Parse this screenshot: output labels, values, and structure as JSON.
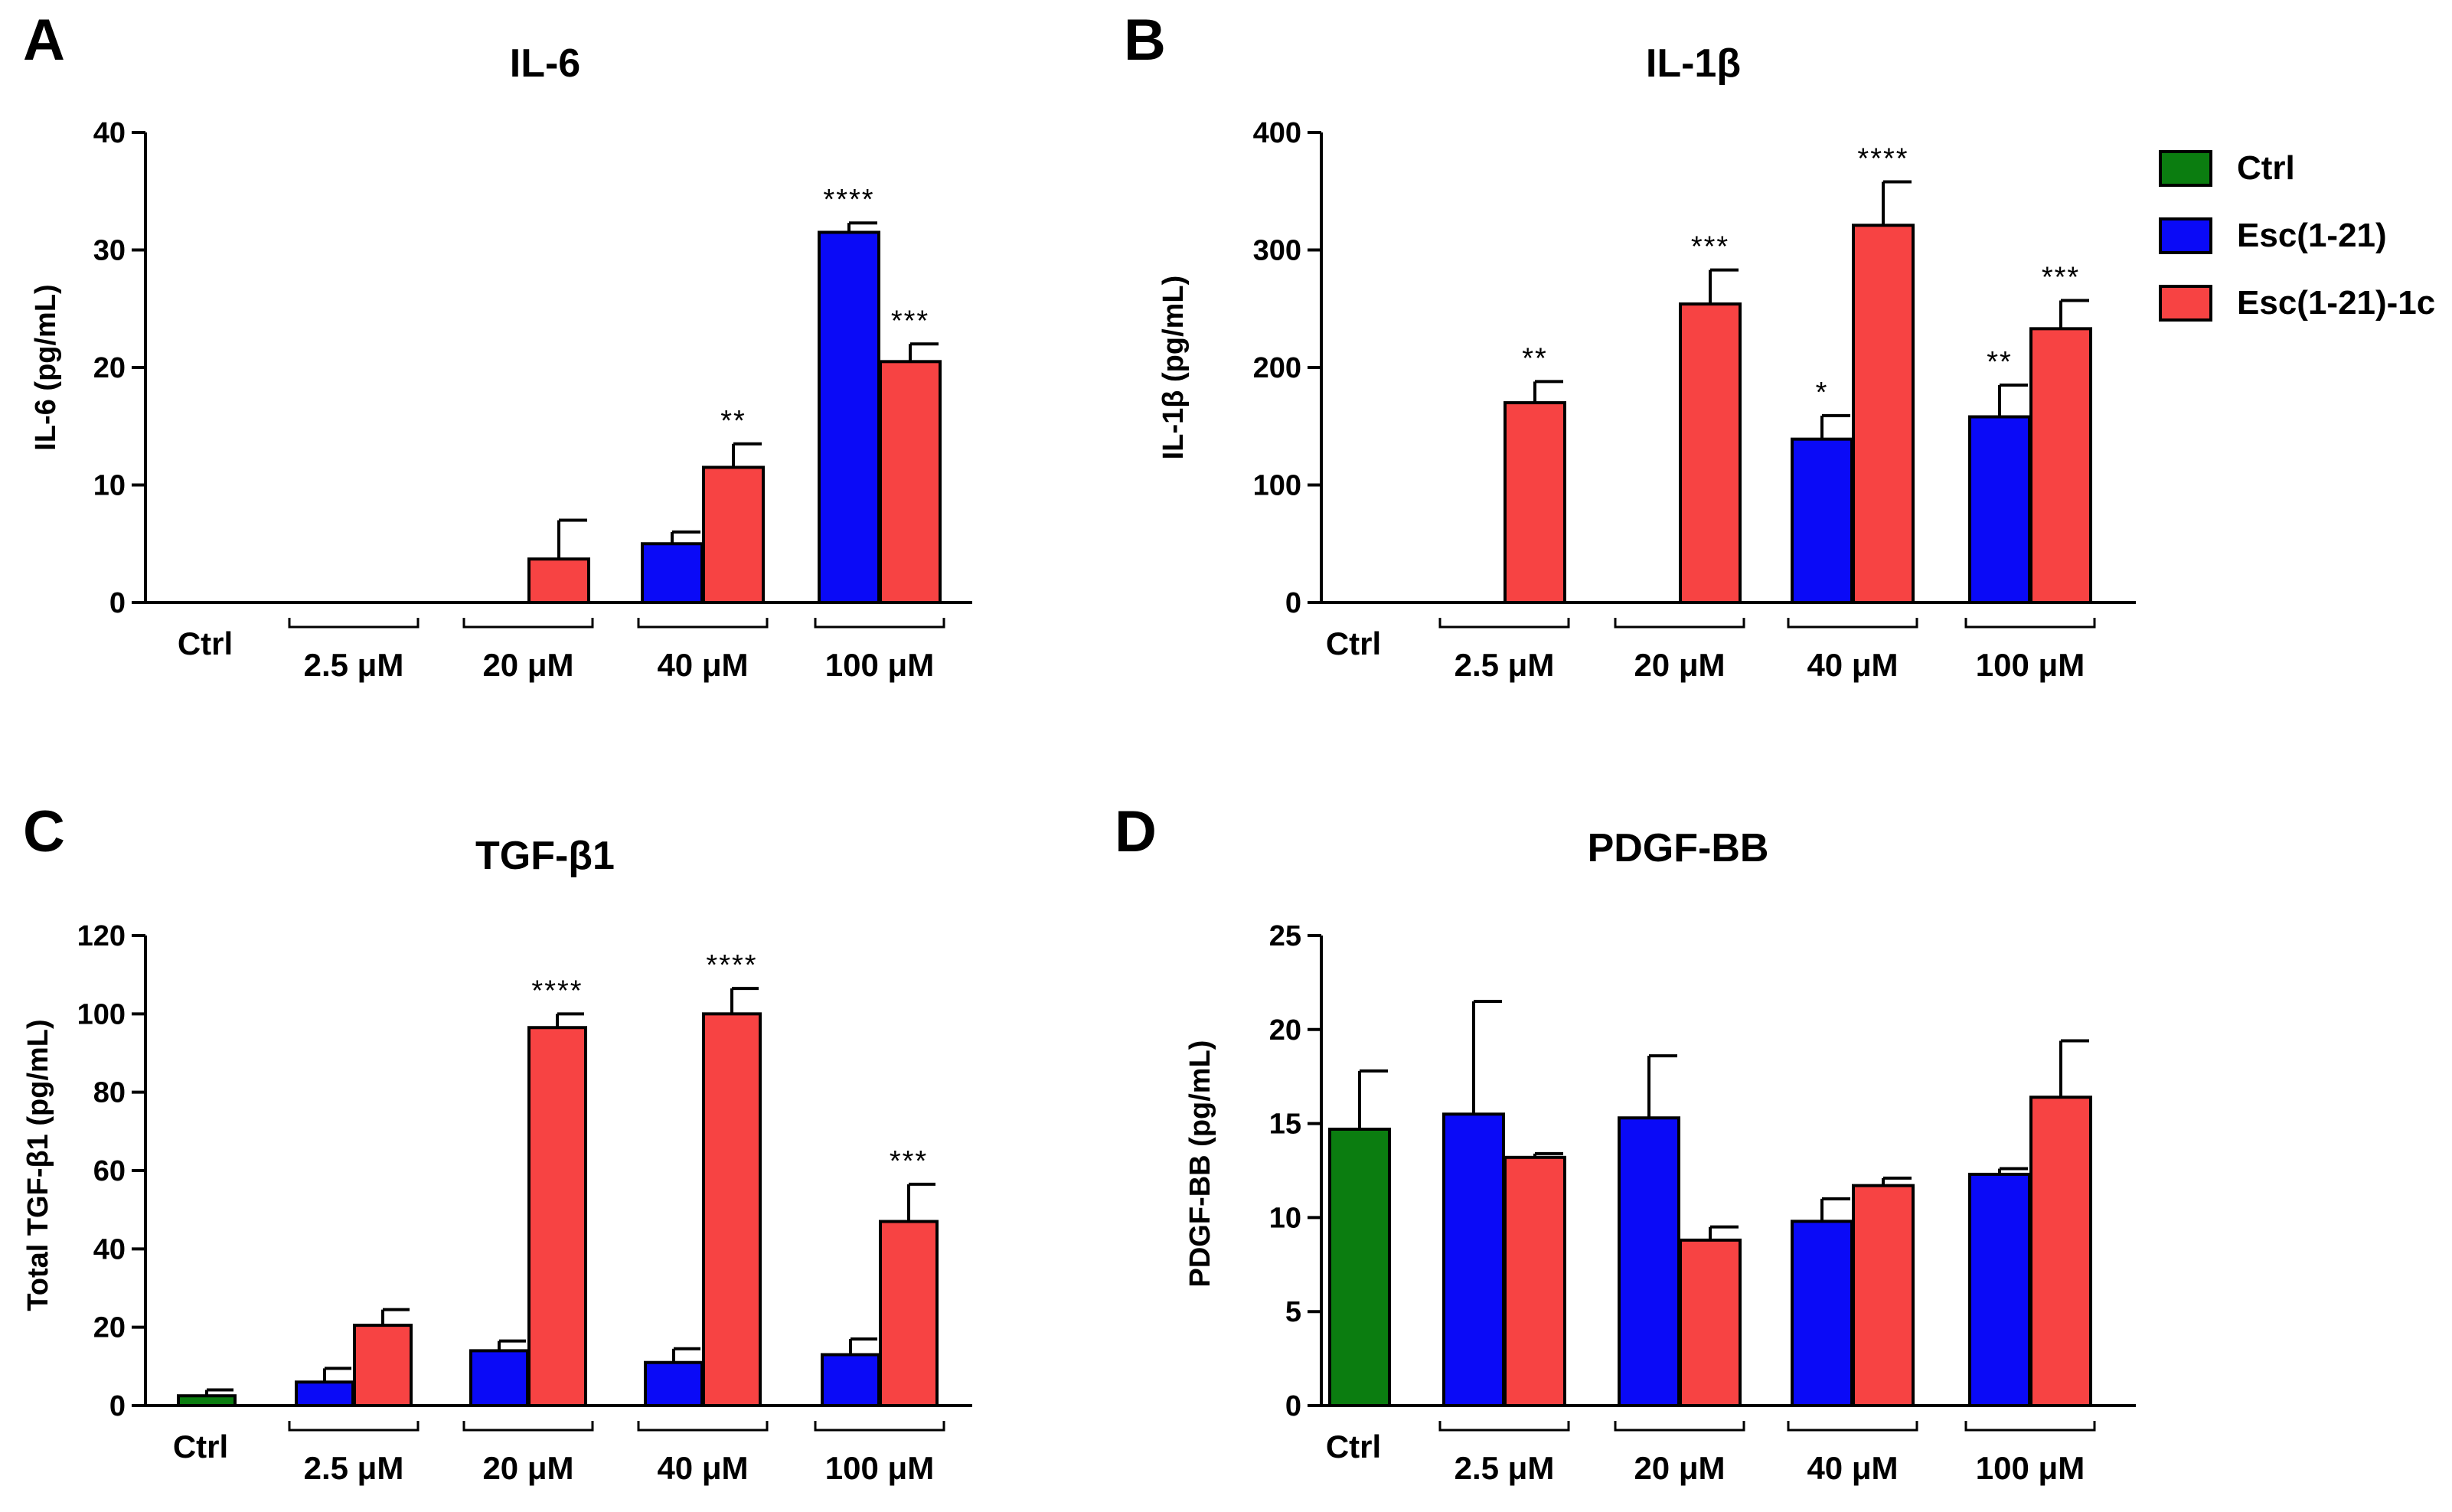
{
  "colors": {
    "ctrl": "#0b7d10",
    "esc": "#0a0af7",
    "esc1c": "#f74343",
    "axis": "#000000"
  },
  "legend": [
    {
      "key": "ctrl",
      "label": "Ctrl"
    },
    {
      "key": "esc",
      "label": "Esc(1-21)"
    },
    {
      "key": "esc1c",
      "label": "Esc(1-21)-1c"
    }
  ],
  "chart_data": [
    {
      "panel": "A",
      "type": "bar",
      "title": "IL-6",
      "ylabel": "IL-6 (pg/mL)",
      "ylim": [
        0,
        40
      ],
      "yticks": [
        0,
        10,
        20,
        30,
        40
      ],
      "categories": [
        "Ctrl",
        "2.5 μM",
        "20 μM",
        "40 μM",
        "100 μM"
      ],
      "series": [
        {
          "name": "Ctrl",
          "key": "ctrl",
          "values": [
            0,
            null,
            null,
            null,
            null
          ],
          "errors": [
            0,
            null,
            null,
            null,
            null
          ],
          "sig": [
            "",
            "",
            "",
            "",
            ""
          ]
        },
        {
          "name": "Esc(1-21)",
          "key": "esc",
          "values": [
            null,
            0,
            0,
            5,
            31.5
          ],
          "errors": [
            null,
            0,
            0,
            1,
            0.8
          ],
          "sig": [
            "",
            "",
            "",
            "",
            "****"
          ]
        },
        {
          "name": "Esc(1-21)-1c",
          "key": "esc1c",
          "values": [
            null,
            0,
            3.7,
            11.5,
            20.5
          ],
          "errors": [
            null,
            0,
            3.3,
            2,
            1.5
          ],
          "sig": [
            "",
            "",
            "",
            "**",
            "***"
          ]
        }
      ]
    },
    {
      "panel": "B",
      "type": "bar",
      "title": "IL-1β",
      "ylabel": "IL-1β (pg/mL)",
      "ylim": [
        0,
        400
      ],
      "yticks": [
        0,
        100,
        200,
        300,
        400
      ],
      "categories": [
        "Ctrl",
        "2.5 μM",
        "20 μM",
        "40 μM",
        "100 μM"
      ],
      "series": [
        {
          "name": "Ctrl",
          "key": "ctrl",
          "values": [
            0,
            null,
            null,
            null,
            null
          ],
          "errors": [
            0,
            null,
            null,
            null,
            null
          ],
          "sig": [
            "",
            "",
            "",
            "",
            ""
          ]
        },
        {
          "name": "Esc(1-21)",
          "key": "esc",
          "values": [
            null,
            0,
            0,
            139,
            158
          ],
          "errors": [
            null,
            0,
            0,
            20,
            27
          ],
          "sig": [
            "",
            "",
            "",
            "*",
            "**"
          ]
        },
        {
          "name": "Esc(1-21)-1c",
          "key": "esc1c",
          "values": [
            null,
            170,
            254,
            321,
            233
          ],
          "errors": [
            null,
            18,
            29,
            37,
            24
          ],
          "sig": [
            "",
            "**",
            "***",
            "****",
            "***"
          ]
        }
      ]
    },
    {
      "panel": "C",
      "type": "bar",
      "title": "TGF-β1",
      "ylabel": "Total TGF-β1 (pg/mL)",
      "ylim": [
        0,
        120
      ],
      "yticks": [
        0,
        20,
        40,
        60,
        80,
        100,
        120
      ],
      "categories": [
        "Ctrl",
        "2.5 μM",
        "20 μM",
        "40 μM",
        "100 μM"
      ],
      "series": [
        {
          "name": "Ctrl",
          "key": "ctrl",
          "values": [
            2.5,
            null,
            null,
            null,
            null
          ],
          "errors": [
            1.5,
            null,
            null,
            null,
            null
          ],
          "sig": [
            "",
            "",
            "",
            "",
            ""
          ]
        },
        {
          "name": "Esc(1-21)",
          "key": "esc",
          "values": [
            null,
            6,
            14,
            11,
            13
          ],
          "errors": [
            null,
            3.5,
            2.5,
            3.5,
            4
          ],
          "sig": [
            "",
            "",
            "",
            "",
            ""
          ]
        },
        {
          "name": "Esc(1-21)-1c",
          "key": "esc1c",
          "values": [
            null,
            20.5,
            96.5,
            100,
            47
          ],
          "errors": [
            null,
            4,
            3.5,
            6.5,
            9.5
          ],
          "sig": [
            "",
            "",
            "****",
            "****",
            "***"
          ]
        }
      ]
    },
    {
      "panel": "D",
      "type": "bar",
      "title": "PDGF-BB",
      "ylabel": "PDGF-BB (pg/mL)",
      "ylim": [
        0,
        25
      ],
      "yticks": [
        0,
        5,
        10,
        15,
        20,
        25
      ],
      "categories": [
        "Ctrl",
        "2.5 μM",
        "20 μM",
        "40 μM",
        "100 μM"
      ],
      "series": [
        {
          "name": "Ctrl",
          "key": "ctrl",
          "values": [
            14.7,
            null,
            null,
            null,
            null
          ],
          "errors": [
            3.1,
            null,
            null,
            null,
            null
          ],
          "sig": [
            "",
            "",
            "",
            "",
            ""
          ]
        },
        {
          "name": "Esc(1-21)",
          "key": "esc",
          "values": [
            null,
            15.5,
            15.3,
            9.8,
            12.3
          ],
          "errors": [
            null,
            6,
            3.3,
            1.2,
            0.3
          ],
          "sig": [
            "",
            "",
            "",
            "",
            ""
          ]
        },
        {
          "name": "Esc(1-21)-1c",
          "key": "esc1c",
          "values": [
            null,
            13.2,
            8.8,
            11.7,
            16.4
          ],
          "errors": [
            null,
            0.2,
            0.7,
            0.4,
            3
          ],
          "sig": [
            "",
            "",
            "",
            "",
            ""
          ]
        }
      ]
    }
  ]
}
